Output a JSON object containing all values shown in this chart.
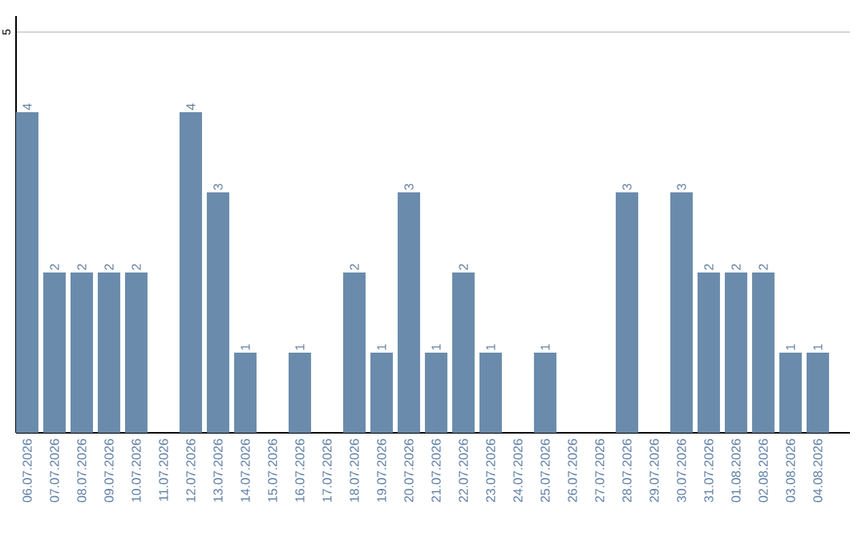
{
  "chart_data": {
    "type": "bar",
    "categories": [
      "06.07.2026",
      "07.07.2026",
      "08.07.2026",
      "09.07.2026",
      "10.07.2026",
      "11.07.2026",
      "12.07.2026",
      "13.07.2026",
      "14.07.2026",
      "15.07.2026",
      "16.07.2026",
      "17.07.2026",
      "18.07.2026",
      "19.07.2026",
      "20.07.2026",
      "21.07.2026",
      "22.07.2026",
      "23.07.2026",
      "24.07.2026",
      "25.07.2026",
      "26.07.2026",
      "27.07.2026",
      "28.07.2026",
      "29.07.2026",
      "30.07.2026",
      "31.07.2026",
      "01.08.2026",
      "02.08.2026",
      "03.08.2026",
      "04.08.2026"
    ],
    "values": [
      4,
      2,
      2,
      2,
      2,
      0,
      4,
      3,
      1,
      0,
      1,
      0,
      2,
      1,
      3,
      1,
      2,
      1,
      0,
      1,
      0,
      0,
      3,
      0,
      3,
      2,
      2,
      2,
      1,
      1
    ],
    "value_labels": [
      "4",
      "2",
      "2",
      "2",
      "2",
      null,
      "4",
      "3",
      "1",
      null,
      "1",
      null,
      "2",
      "1",
      "3",
      "1",
      "2",
      "1",
      null,
      "1",
      null,
      null,
      "3",
      null,
      "3",
      "2",
      "2",
      "2",
      "1",
      "1"
    ],
    "color": "#6a8bab",
    "ylim": [
      0,
      5.2
    ],
    "yticks": [
      5
    ],
    "grid": "y"
  }
}
